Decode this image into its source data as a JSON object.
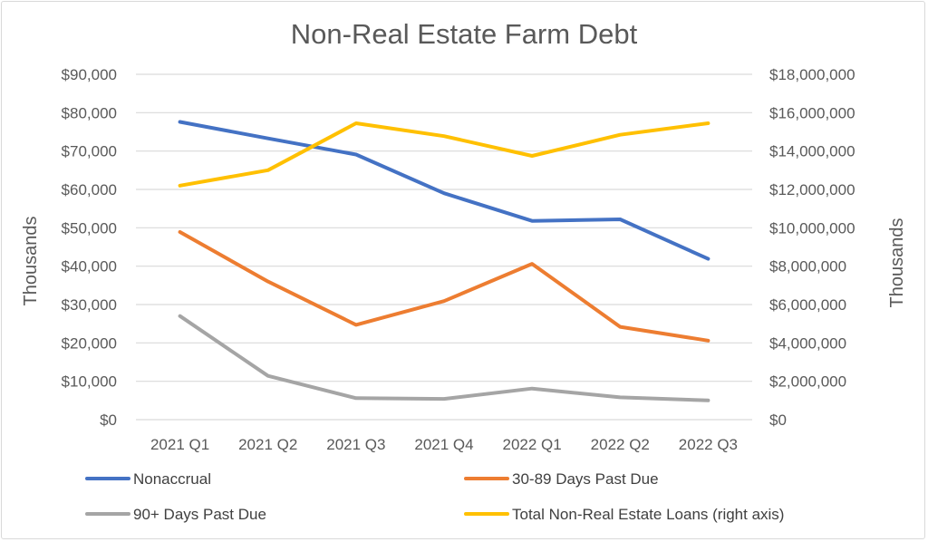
{
  "chart_data": {
    "type": "line",
    "title": "Non-Real Estate Farm Debt",
    "ylabel": "Thousands",
    "y2label": "Thousands",
    "categories": [
      "2021 Q1",
      "2021 Q2",
      "2021 Q3",
      "2021 Q4",
      "2022 Q1",
      "2022 Q2",
      "2022 Q3"
    ],
    "ylim": [
      0,
      90000
    ],
    "y2lim": [
      0,
      18000000
    ],
    "yticks": [
      "$0",
      "$10,000",
      "$20,000",
      "$30,000",
      "$40,000",
      "$50,000",
      "$60,000",
      "$70,000",
      "$80,000",
      "$90,000"
    ],
    "y2ticks": [
      "$0",
      "$2,000,000",
      "$4,000,000",
      "$6,000,000",
      "$8,000,000",
      "$10,000,000",
      "$12,000,000",
      "$14,000,000",
      "$16,000,000",
      "$18,000,000"
    ],
    "grid": true,
    "legend_position": "bottom",
    "series": [
      {
        "name": "Nonaccrual",
        "axis": "left",
        "color": "#4472c4",
        "values": [
          77600,
          73300,
          69100,
          59000,
          51800,
          52200,
          41900
        ]
      },
      {
        "name": "30-89 Days Past Due",
        "axis": "left",
        "color": "#ed7d31",
        "values": [
          48900,
          36000,
          24700,
          30900,
          40600,
          24200,
          20600
        ]
      },
      {
        "name": "90+ Days Past Due",
        "axis": "left",
        "color": "#a5a5a5",
        "values": [
          27000,
          11400,
          5600,
          5400,
          8100,
          5800,
          5000
        ]
      },
      {
        "name": "Total Non-Real Estate Loans (right axis)",
        "axis": "right",
        "color": "#ffc000",
        "values": [
          12200000,
          13000000,
          15450000,
          14780000,
          13750000,
          14850000,
          15450000
        ]
      }
    ]
  }
}
